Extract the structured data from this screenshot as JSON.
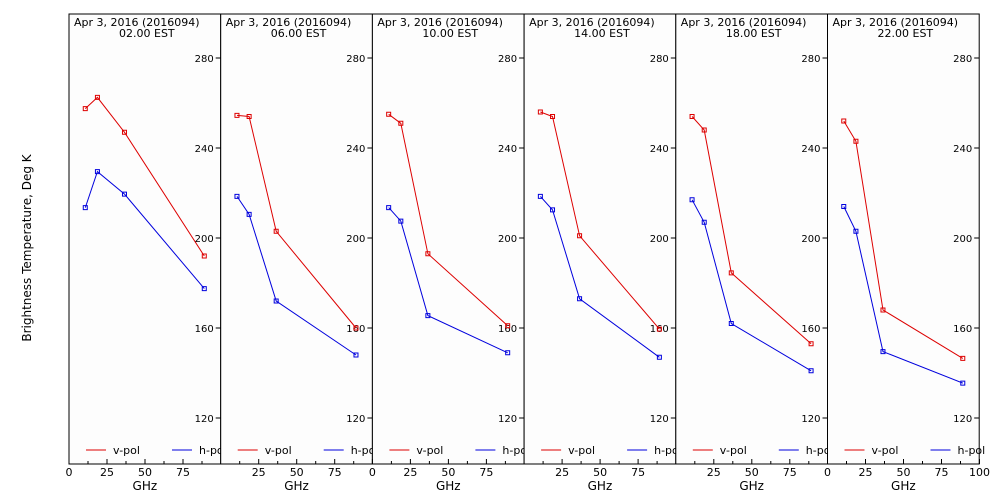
{
  "ylabel": "Brightness Temperature, Deg K",
  "legend": [
    {
      "name": "v-pol",
      "color": "#dd0000"
    },
    {
      "name": "h-pol",
      "color": "#0000dd"
    }
  ],
  "chart_data": [
    {
      "type": "line",
      "title": "Apr  3, 2016 (2016094)",
      "subtitle": "02.00 EST",
      "xlabel": "GHz",
      "ylabel": "Brightness Temperature, Deg K",
      "xlim": [
        0,
        100
      ],
      "ylim": [
        100,
        295
      ],
      "xticks": [
        "0",
        "25",
        "50",
        "75"
      ],
      "yticks": [
        "120",
        "160",
        "200",
        "240",
        "280"
      ],
      "legend_position": "bottom",
      "series": [
        {
          "name": "v-pol",
          "color": "#dd0000",
          "x": [
            10.7,
            18.7,
            36.5,
            89
          ],
          "y": [
            257.5,
            262.5,
            247,
            192
          ]
        },
        {
          "name": "h-pol",
          "color": "#0000dd",
          "x": [
            10.7,
            18.7,
            36.5,
            89
          ],
          "y": [
            213.5,
            229.5,
            219.5,
            177.5
          ]
        }
      ]
    },
    {
      "type": "line",
      "title": "Apr  3, 2016 (2016094)",
      "subtitle": "06.00 EST",
      "xlabel": "GHz",
      "ylabel": "",
      "xlim": [
        0,
        100
      ],
      "ylim": [
        100,
        295
      ],
      "xticks": [
        "25",
        "50",
        "75"
      ],
      "yticks": [
        "120",
        "160",
        "200",
        "240",
        "280"
      ],
      "legend_position": "bottom",
      "series": [
        {
          "name": "v-pol",
          "color": "#dd0000",
          "x": [
            10.7,
            18.7,
            36.5,
            89
          ],
          "y": [
            254.5,
            254,
            203,
            160
          ]
        },
        {
          "name": "h-pol",
          "color": "#0000dd",
          "x": [
            10.7,
            18.7,
            36.5,
            89
          ],
          "y": [
            218.5,
            210.5,
            172,
            148
          ]
        }
      ]
    },
    {
      "type": "line",
      "title": "Apr  3, 2016 (2016094)",
      "subtitle": "10.00 EST",
      "xlabel": "GHz",
      "ylabel": "",
      "xlim": [
        0,
        100
      ],
      "ylim": [
        100,
        295
      ],
      "xticks": [
        "0",
        "25",
        "50",
        "75"
      ],
      "yticks": [
        "120",
        "160",
        "200",
        "240",
        "280"
      ],
      "legend_position": "bottom",
      "series": [
        {
          "name": "v-pol",
          "color": "#dd0000",
          "x": [
            10.7,
            18.7,
            36.5,
            89
          ],
          "y": [
            255,
            251,
            193,
            161
          ]
        },
        {
          "name": "h-pol",
          "color": "#0000dd",
          "x": [
            10.7,
            18.7,
            36.5,
            89
          ],
          "y": [
            213.5,
            207.5,
            165.5,
            149
          ]
        }
      ]
    },
    {
      "type": "line",
      "title": "Apr  3, 2016 (2016094)",
      "subtitle": "14.00 EST",
      "xlabel": "GHz",
      "ylabel": "",
      "xlim": [
        0,
        100
      ],
      "ylim": [
        100,
        295
      ],
      "xticks": [
        "25",
        "50",
        "75"
      ],
      "yticks": [
        "120",
        "160",
        "200",
        "240",
        "280"
      ],
      "legend_position": "bottom",
      "series": [
        {
          "name": "v-pol",
          "color": "#dd0000",
          "x": [
            10.7,
            18.7,
            36.5,
            89
          ],
          "y": [
            256,
            254,
            201,
            159.5
          ]
        },
        {
          "name": "h-pol",
          "color": "#0000dd",
          "x": [
            10.7,
            18.7,
            36.5,
            89
          ],
          "y": [
            218.5,
            212.5,
            173,
            147
          ]
        }
      ]
    },
    {
      "type": "line",
      "title": "Apr  3, 2016 (2016094)",
      "subtitle": "18.00 EST",
      "xlabel": "GHz",
      "ylabel": "",
      "xlim": [
        0,
        100
      ],
      "ylim": [
        100,
        295
      ],
      "xticks": [
        "25",
        "50",
        "75"
      ],
      "yticks": [
        "120",
        "160",
        "200",
        "240",
        "280"
      ],
      "legend_position": "bottom",
      "series": [
        {
          "name": "v-pol",
          "color": "#dd0000",
          "x": [
            10.7,
            18.7,
            36.5,
            89
          ],
          "y": [
            254,
            248,
            184.5,
            153
          ]
        },
        {
          "name": "h-pol",
          "color": "#0000dd",
          "x": [
            10.7,
            18.7,
            36.5,
            89
          ],
          "y": [
            217,
            207,
            162,
            141
          ]
        }
      ]
    },
    {
      "type": "line",
      "title": "Apr  3, 2016 (2016094)",
      "subtitle": "22.00 EST",
      "xlabel": "GHz",
      "ylabel": "",
      "xlim": [
        0,
        100
      ],
      "ylim": [
        100,
        295
      ],
      "xticks": [
        "0",
        "25",
        "50",
        "75",
        "100"
      ],
      "yticks": [
        "120",
        "160",
        "200",
        "240",
        "280"
      ],
      "legend_position": "bottom",
      "series": [
        {
          "name": "v-pol",
          "color": "#dd0000",
          "x": [
            10.7,
            18.7,
            36.5,
            89
          ],
          "y": [
            252,
            243,
            168,
            146.5
          ]
        },
        {
          "name": "h-pol",
          "color": "#0000dd",
          "x": [
            10.7,
            18.7,
            36.5,
            89
          ],
          "y": [
            214,
            203,
            149.5,
            135.5
          ]
        }
      ]
    }
  ]
}
